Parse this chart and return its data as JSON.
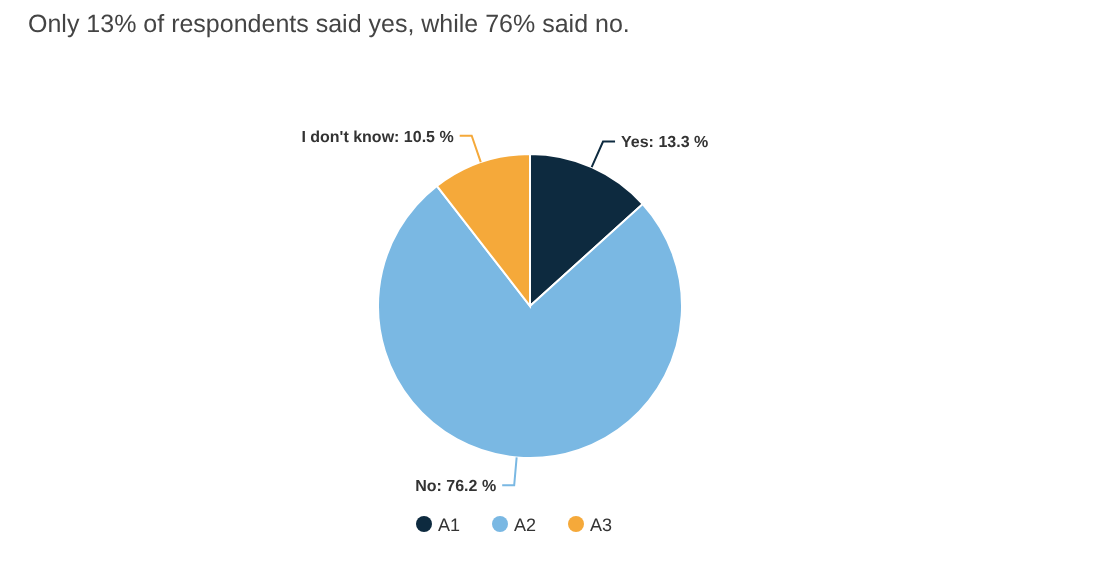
{
  "chart_data": {
    "type": "pie",
    "title": "Only 13% of respondents said yes, while 76% said no.",
    "categories": [
      "A1",
      "A2",
      "A3"
    ],
    "values": [
      13.3,
      76.2,
      10.5
    ],
    "colors": [
      "#0d2a3f",
      "#7ab8e3",
      "#f5a93a"
    ],
    "value_labels": [
      "Yes: 13.3 %",
      "No: 76.2 %",
      "I don't know: 10.5 %"
    ],
    "legend": "bottom"
  }
}
